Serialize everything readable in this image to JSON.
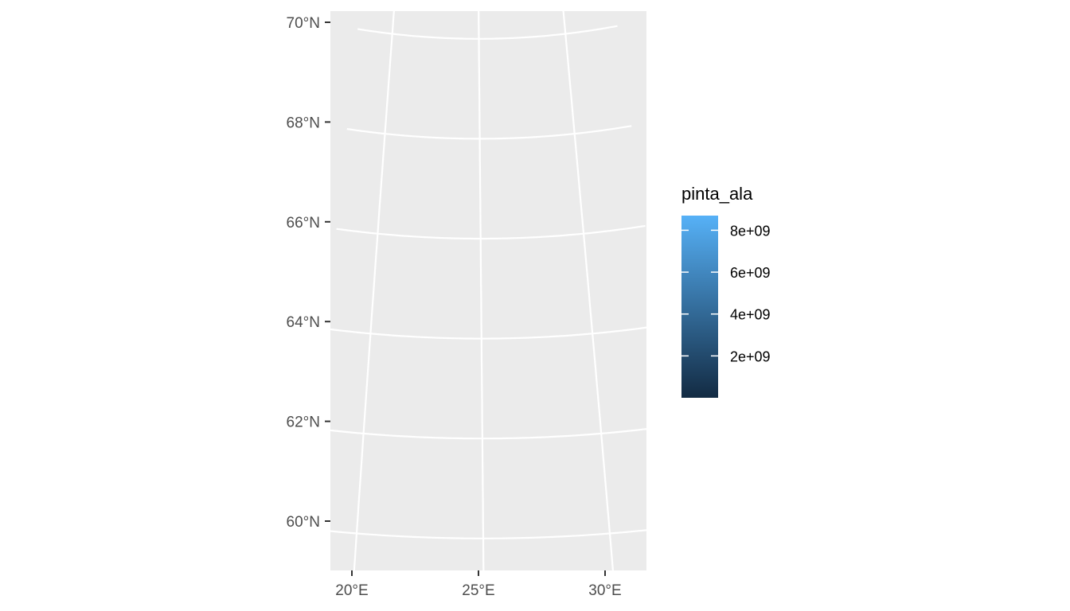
{
  "chart_data": {
    "type": "map",
    "projection": "conic",
    "xlim": [
      19.2,
      31.6
    ],
    "ylim": [
      59.1,
      70.4
    ],
    "x_ticks": [
      {
        "value": 20,
        "label": "20°E"
      },
      {
        "value": 25,
        "label": "25°E"
      },
      {
        "value": 30,
        "label": "30°E"
      }
    ],
    "y_ticks": [
      {
        "value": 60,
        "label": "60°N"
      },
      {
        "value": 62,
        "label": "62°N"
      },
      {
        "value": 64,
        "label": "64°N"
      },
      {
        "value": 66,
        "label": "66°N"
      },
      {
        "value": 68,
        "label": "68°N"
      },
      {
        "value": 70,
        "label": "70°N"
      }
    ],
    "meridians": [
      20,
      25,
      30
    ],
    "parallels": [
      60,
      62,
      64,
      66,
      68,
      70
    ],
    "grid": true,
    "panel_background": "#ebebeb",
    "grid_color": "#ffffff",
    "legend": {
      "title": "pinta_ala",
      "position": "right",
      "min": 0,
      "max": 8700000000,
      "color_low": "#132b43",
      "color_high": "#56b1f7",
      "breaks": [
        {
          "value": 2000000000,
          "label": "2e+09"
        },
        {
          "value": 4000000000,
          "label": "4e+09"
        },
        {
          "value": 6000000000,
          "label": "6e+09"
        },
        {
          "value": 8000000000,
          "label": "8e+09"
        }
      ]
    }
  }
}
